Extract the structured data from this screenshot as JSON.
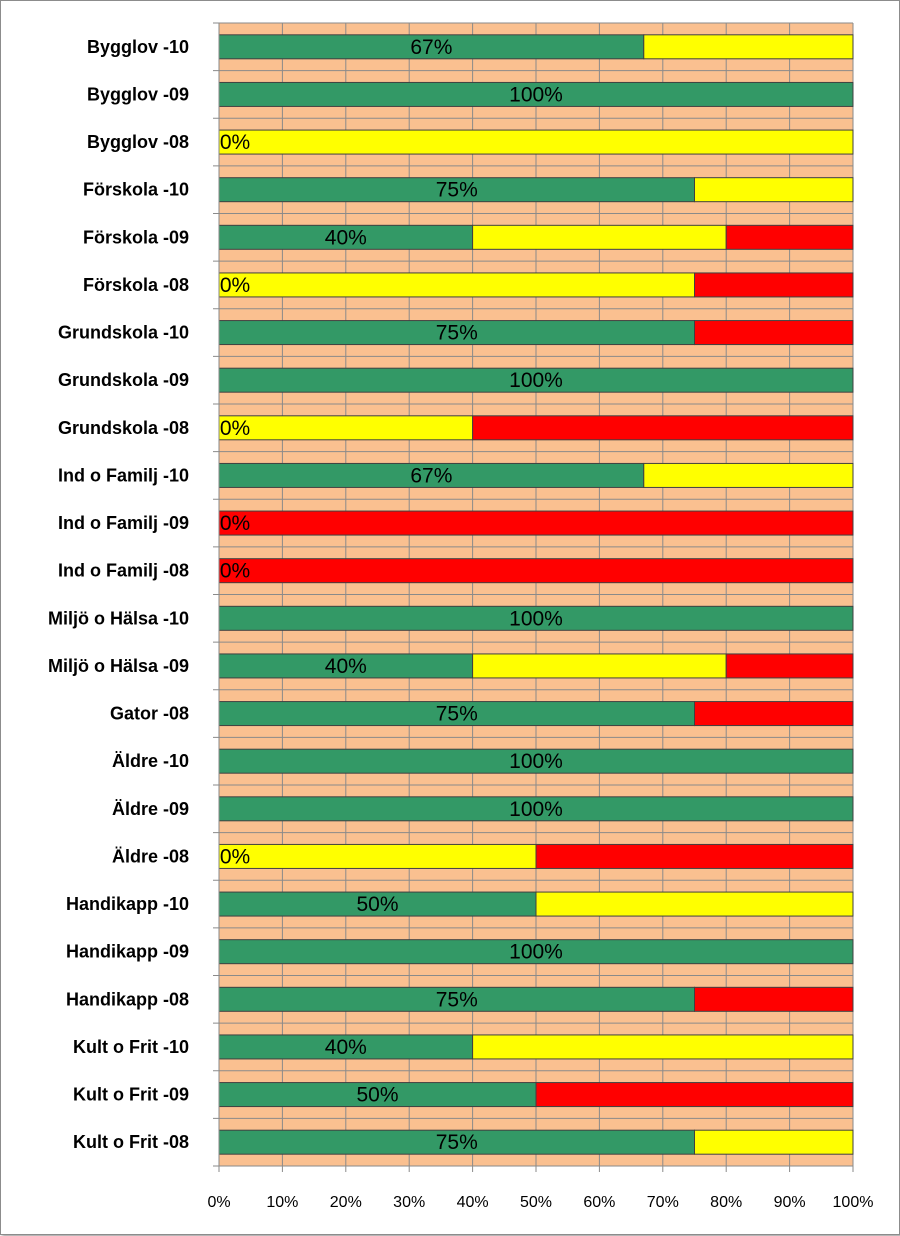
{
  "chart_data": {
    "type": "bar",
    "orientation": "horizontal",
    "stacked": "percent",
    "title": "",
    "xlabel": "",
    "ylabel": "",
    "xlim": [
      0,
      100
    ],
    "x_ticks": [
      "0%",
      "10%",
      "20%",
      "30%",
      "40%",
      "50%",
      "60%",
      "70%",
      "80%",
      "90%",
      "100%"
    ],
    "grid": true,
    "plot_background": "#FAC090",
    "categories": [
      "Bygglov -10",
      "Bygglov -09",
      "Bygglov -08",
      "Förskola -10",
      "Förskola -09",
      "Förskola -08",
      "Grundskola -10",
      "Grundskola -09",
      "Grundskola -08",
      "Ind o Familj -10",
      "Ind o Familj -09",
      "Ind o Familj -08",
      "Miljö o Hälsa -10",
      "Miljö o Hälsa -09",
      "Gator -08",
      "Äldre -10",
      "Äldre -09",
      "Äldre -08",
      "Handikapp -10",
      "Handikapp -09",
      "Handikapp -08",
      "Kult o Frit -10",
      "Kult o Frit -09",
      "Kult o Frit -08"
    ],
    "series": [
      {
        "color": "#339966",
        "values": [
          67,
          100,
          0,
          75,
          40,
          0,
          75,
          100,
          0,
          67,
          0,
          0,
          100,
          40,
          75,
          100,
          100,
          0,
          50,
          100,
          75,
          40,
          50,
          75
        ]
      },
      {
        "color": "#FFFF00",
        "values": [
          33,
          0,
          100,
          25,
          40,
          75,
          0,
          0,
          40,
          33,
          0,
          0,
          0,
          40,
          0,
          0,
          0,
          50,
          50,
          0,
          0,
          60,
          0,
          25
        ]
      },
      {
        "color": "#FF0000",
        "values": [
          0,
          0,
          0,
          0,
          20,
          25,
          25,
          0,
          60,
          0,
          100,
          100,
          0,
          20,
          25,
          0,
          0,
          50,
          0,
          0,
          25,
          0,
          50,
          0
        ]
      }
    ],
    "data_labels": [
      "67%",
      "100%",
      "0%",
      "75%",
      "40%",
      "0%",
      "75%",
      "100%",
      "0%",
      "67%",
      "0%",
      "0%",
      "100%",
      "40%",
      "75%",
      "100%",
      "100%",
      "0%",
      "50%",
      "100%",
      "75%",
      "40%",
      "50%",
      "75%"
    ]
  }
}
